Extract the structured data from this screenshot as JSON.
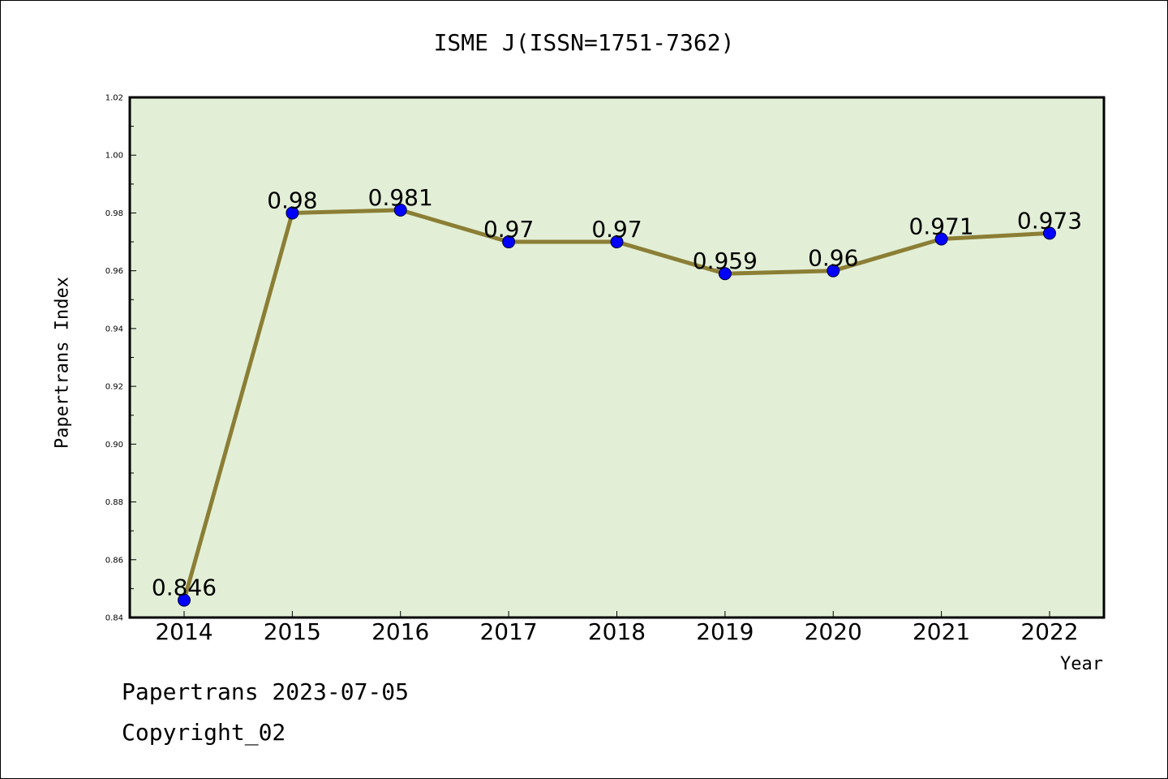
{
  "chart_data": {
    "type": "line",
    "title": "ISME J(ISSN=1751-7362)",
    "xlabel": "Year",
    "ylabel": "Papertrans Index",
    "categories": [
      "2014",
      "2015",
      "2016",
      "2017",
      "2018",
      "2019",
      "2020",
      "2021",
      "2022"
    ],
    "values": [
      0.846,
      0.98,
      0.981,
      0.97,
      0.97,
      0.959,
      0.96,
      0.971,
      0.973
    ],
    "data_labels": [
      "0.846",
      "0.98",
      "0.981",
      "0.97",
      "0.97",
      "0.959",
      "0.96",
      "0.971",
      "0.973"
    ],
    "ylim": [
      0.84,
      1.02
    ],
    "yticks": [
      "0.84",
      "0.86",
      "0.88",
      "0.90",
      "0.92",
      "0.94",
      "0.96",
      "0.98",
      "1.00",
      "1.02"
    ],
    "grid": false,
    "colors": {
      "plot_bg": "#e2efd6",
      "line": "#8b7e35",
      "marker": "#0000ff"
    }
  },
  "footer": {
    "line1": "Papertrans 2023-07-05",
    "line2": "Copyright_02"
  }
}
